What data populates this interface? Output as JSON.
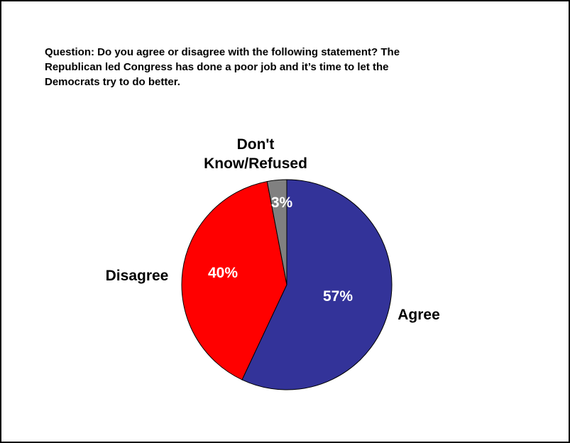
{
  "question": "Question: Do you agree or disagree with the following statement?  The\nRepublican led Congress has done a poor job and it’s time to let the\nDemocrats try to do better.",
  "chart_data": {
    "type": "pie",
    "title": "",
    "slices": [
      {
        "label": "Agree",
        "value": 57,
        "value_label": "57%",
        "color": "#333399"
      },
      {
        "label": "Disagree",
        "value": 40,
        "value_label": "40%",
        "color": "#FF0000"
      },
      {
        "label_lines": [
          "Don't",
          "Know/Refused"
        ],
        "value": 3,
        "value_label": "3%",
        "color": "#808080"
      }
    ],
    "legend": "none"
  }
}
